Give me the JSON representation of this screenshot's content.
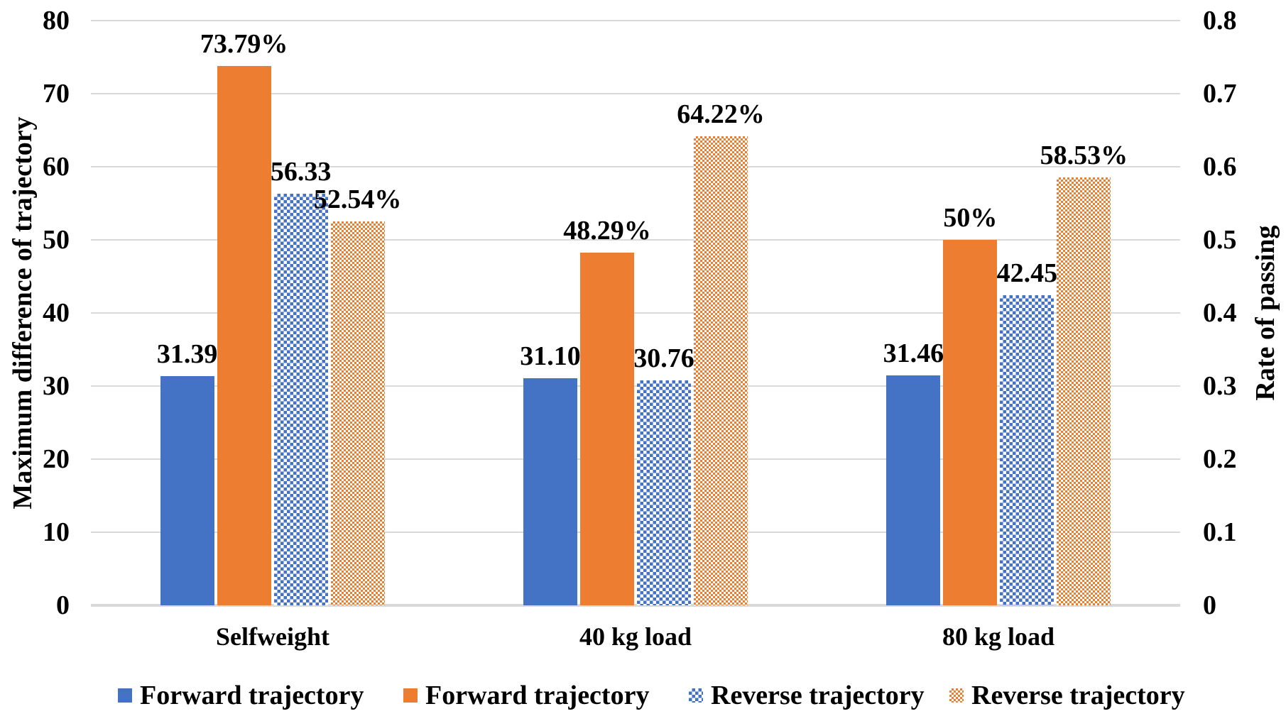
{
  "chart_data": {
    "type": "bar",
    "title": "",
    "categories": [
      "Selfweight",
      "40 kg load",
      "80 kg load"
    ],
    "series": [
      {
        "name": "Forward trajectory",
        "axis": "left",
        "style": "solid-blue",
        "values": [
          31.39,
          31.1,
          31.46
        ],
        "labels": [
          "31.39",
          "31.10",
          "31.46"
        ]
      },
      {
        "name": "Forward trajectory",
        "axis": "right",
        "style": "solid-orange",
        "values": [
          0.7379,
          0.4829,
          0.5
        ],
        "labels": [
          "73.79%",
          "48.29%",
          "50%"
        ]
      },
      {
        "name": "Reverse trajectory",
        "axis": "left",
        "style": "checker-blue",
        "values": [
          56.33,
          30.76,
          42.45
        ],
        "labels": [
          "56.33",
          "30.76",
          "42.45"
        ]
      },
      {
        "name": "Reverse trajectory",
        "axis": "right",
        "style": "checker-orange",
        "values": [
          0.5254,
          0.6422,
          0.5853
        ],
        "labels": [
          "52.54%",
          "64.22%",
          "58.53%"
        ]
      }
    ],
    "left_axis": {
      "title": "Maximum difference of trajectory",
      "min": 0,
      "max": 80,
      "ticks": [
        "80",
        "70",
        "60",
        "50",
        "40",
        "30",
        "20",
        "10",
        "0"
      ]
    },
    "right_axis": {
      "title": "Rate of passing",
      "min": 0,
      "max": 0.8,
      "ticks": [
        "0.8",
        "0.7",
        "0.6",
        "0.5",
        "0.4",
        "0.3",
        "0.2",
        "0.1",
        "0"
      ]
    },
    "colors": {
      "blue": "#4472C4",
      "orange": "#ED7D31",
      "gridline": "#D9D9D9",
      "text": "#000000"
    },
    "legend_position": "bottom",
    "grid": true
  }
}
